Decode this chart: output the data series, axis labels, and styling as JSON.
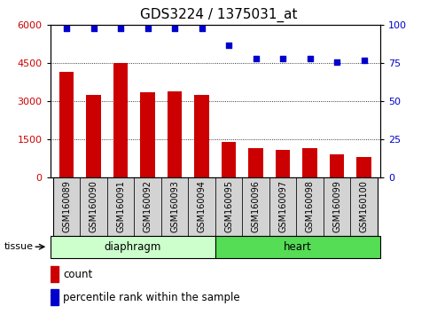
{
  "title": "GDS3224 / 1375031_at",
  "samples": [
    "GSM160089",
    "GSM160090",
    "GSM160091",
    "GSM160092",
    "GSM160093",
    "GSM160094",
    "GSM160095",
    "GSM160096",
    "GSM160097",
    "GSM160098",
    "GSM160099",
    "GSM160100"
  ],
  "counts": [
    4150,
    3250,
    4500,
    3350,
    3400,
    3250,
    1400,
    1150,
    1100,
    1150,
    900,
    800
  ],
  "percentiles": [
    98,
    98,
    98,
    98,
    98,
    98,
    87,
    78,
    78,
    78,
    76,
    77
  ],
  "bar_color": "#cc0000",
  "dot_color": "#0000cc",
  "ylim_left": [
    0,
    6000
  ],
  "ylim_right": [
    0,
    100
  ],
  "yticks_left": [
    0,
    1500,
    3000,
    4500,
    6000
  ],
  "yticks_right": [
    0,
    25,
    50,
    75,
    100
  ],
  "groups": [
    {
      "label": "diaphragm",
      "start": 0,
      "end": 6,
      "color_light": "#ccffcc",
      "color_bright": "#ccffcc"
    },
    {
      "label": "heart",
      "start": 6,
      "end": 12,
      "color_light": "#44dd44",
      "color_bright": "#44dd44"
    }
  ],
  "tissue_label": "tissue",
  "legend_count_label": "count",
  "legend_pct_label": "percentile rank within the sample",
  "plot_bg_color": "#ffffff",
  "cell_bg_color": "#d3d3d3",
  "title_fontsize": 11,
  "tick_fontsize": 8,
  "label_fontsize": 7
}
